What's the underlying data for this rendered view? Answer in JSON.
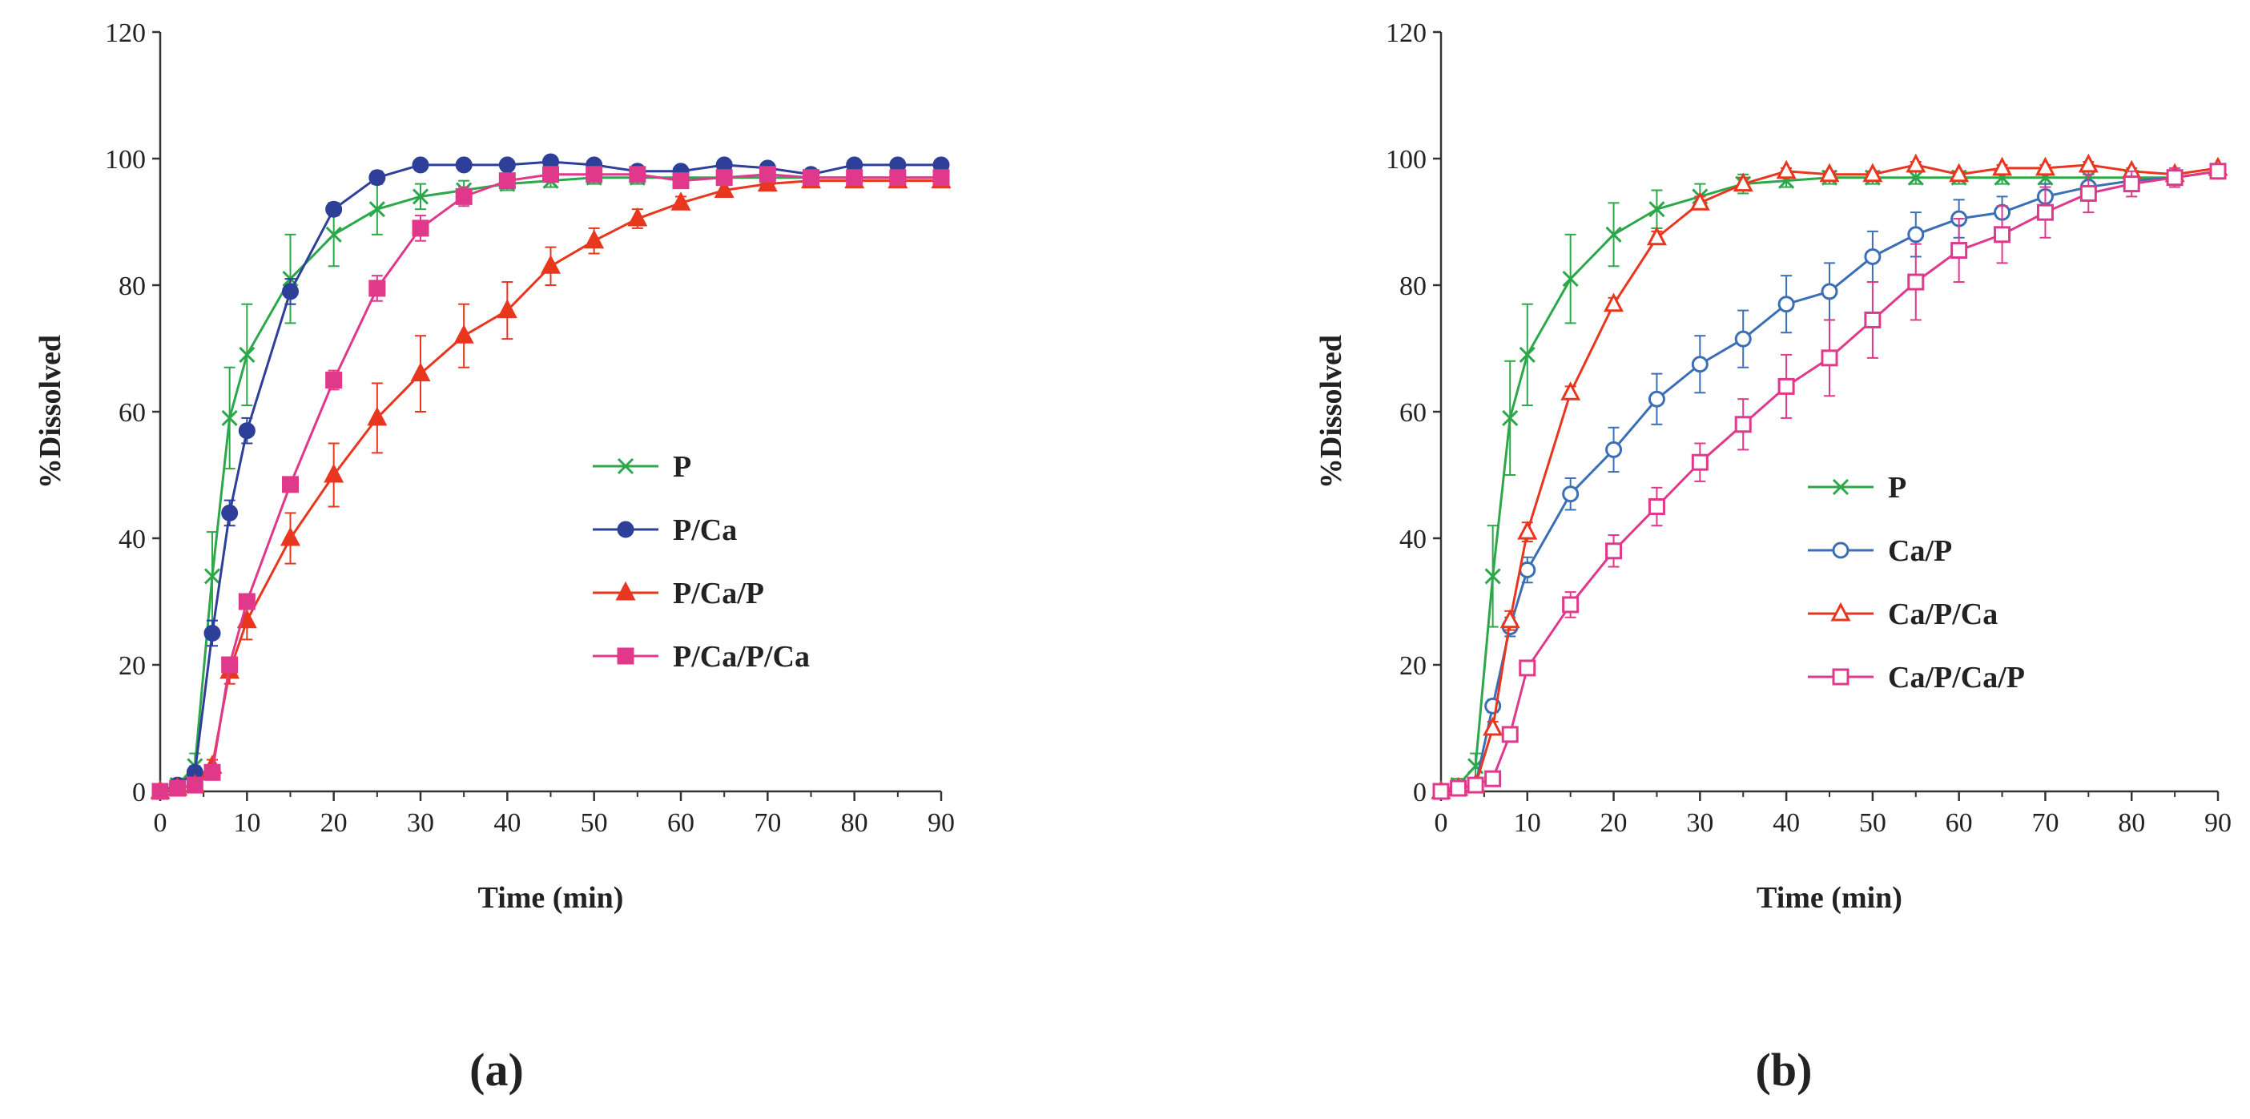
{
  "chart_data": [
    {
      "type": "line",
      "panel_label": "(a)",
      "xlabel": "Time (min)",
      "ylabel": "%Dissolved",
      "xlim": [
        0,
        90
      ],
      "ylim": [
        0,
        120
      ],
      "xticks": [
        0,
        10,
        20,
        30,
        40,
        50,
        60,
        70,
        80,
        90
      ],
      "yticks": [
        0,
        20,
        40,
        60,
        80,
        100,
        120
      ],
      "grid": false,
      "legend_position": "center-right",
      "series": [
        {
          "name": "P",
          "color": "#2ca84a",
          "marker": "x",
          "filled": true,
          "x": [
            0,
            2,
            4,
            6,
            8,
            10,
            15,
            20,
            25,
            30,
            35,
            40,
            45,
            50,
            55,
            60,
            65,
            70,
            75,
            80,
            85,
            90
          ],
          "y": [
            0,
            1,
            4,
            34,
            59,
            69,
            81,
            88,
            92,
            94,
            95,
            96,
            96.5,
            97,
            97,
            97,
            97,
            97,
            97,
            97,
            97,
            97
          ],
          "err": [
            0,
            1,
            2,
            7,
            8,
            8,
            7,
            5,
            4,
            2,
            1.5,
            1,
            1,
            1,
            1,
            1,
            1,
            1,
            1,
            1,
            1,
            1
          ]
        },
        {
          "name": "P/Ca",
          "color": "#2e3f99",
          "marker": "circle",
          "filled": true,
          "x": [
            0,
            2,
            4,
            6,
            8,
            10,
            15,
            20,
            25,
            30,
            35,
            40,
            45,
            50,
            55,
            60,
            65,
            70,
            75,
            80,
            85,
            90
          ],
          "y": [
            0,
            1,
            3,
            25,
            44,
            57,
            79,
            92,
            97,
            99,
            99,
            99,
            99.5,
            99,
            98,
            98,
            99,
            98.5,
            97.5,
            99,
            99,
            99
          ],
          "err": [
            0,
            0.5,
            1,
            2,
            2,
            2,
            2,
            1,
            1,
            0.5,
            0.5,
            0.5,
            0.5,
            0.5,
            0.5,
            0.5,
            0.5,
            0.5,
            0.5,
            0.5,
            0.5,
            0.5
          ]
        },
        {
          "name": "P/Ca/P",
          "color": "#e8361f",
          "marker": "triangle",
          "filled": true,
          "x": [
            0,
            2,
            4,
            6,
            8,
            10,
            15,
            20,
            25,
            30,
            35,
            40,
            45,
            50,
            55,
            60,
            65,
            70,
            75,
            80,
            85,
            90
          ],
          "y": [
            0,
            0.5,
            1,
            4,
            19,
            27,
            40,
            50,
            59,
            66,
            72,
            76,
            83,
            87,
            90.5,
            93,
            95,
            96,
            96.5,
            96.5,
            96.5,
            96.5
          ],
          "err": [
            0,
            0.5,
            0.5,
            1,
            2,
            3,
            4,
            5,
            5.5,
            6,
            5,
            4.5,
            3,
            2,
            1.5,
            1,
            1,
            1,
            1,
            1,
            1,
            1
          ]
        },
        {
          "name": "P/Ca/P/Ca",
          "color": "#e0388a",
          "marker": "square",
          "filled": true,
          "x": [
            0,
            2,
            4,
            6,
            8,
            10,
            15,
            20,
            25,
            30,
            35,
            40,
            45,
            50,
            55,
            60,
            65,
            70,
            75,
            80,
            85,
            90
          ],
          "y": [
            0,
            0.5,
            1,
            3,
            20,
            30,
            48.5,
            65,
            79.5,
            89,
            94,
            96.5,
            97.5,
            97.5,
            97.5,
            96.5,
            97,
            97.5,
            97,
            97,
            97,
            97
          ],
          "err": [
            0,
            0.5,
            0.5,
            1,
            1,
            1,
            1,
            1.5,
            2,
            2,
            1.5,
            1,
            1,
            1,
            1,
            1,
            1,
            1,
            1,
            1,
            1,
            1
          ]
        }
      ]
    },
    {
      "type": "line",
      "panel_label": "(b)",
      "xlabel": "Time (min)",
      "ylabel": "%Dissolved",
      "xlim": [
        0,
        90
      ],
      "ylim": [
        0,
        120
      ],
      "xticks": [
        0,
        10,
        20,
        30,
        40,
        50,
        60,
        70,
        80,
        90
      ],
      "yticks": [
        0,
        20,
        40,
        60,
        80,
        100,
        120
      ],
      "grid": false,
      "legend_position": "center-right",
      "series": [
        {
          "name": "P",
          "color": "#2ca84a",
          "marker": "x",
          "filled": true,
          "x": [
            0,
            2,
            4,
            6,
            8,
            10,
            15,
            20,
            25,
            30,
            35,
            40,
            45,
            50,
            55,
            60,
            65,
            70,
            75,
            80,
            85,
            90
          ],
          "y": [
            0,
            1,
            4,
            34,
            59,
            69,
            81,
            88,
            92,
            94,
            96,
            96.5,
            97,
            97,
            97,
            97,
            97,
            97,
            97,
            97,
            97,
            98
          ],
          "err": [
            0,
            1,
            2,
            8,
            9,
            8,
            7,
            5,
            3,
            2,
            1.5,
            1,
            1,
            1,
            1,
            1,
            1,
            1,
            1,
            1,
            1,
            1
          ]
        },
        {
          "name": "Ca/P",
          "color": "#3a6fb5",
          "marker": "circle",
          "filled": false,
          "x": [
            0,
            2,
            4,
            6,
            8,
            10,
            15,
            20,
            25,
            30,
            35,
            40,
            45,
            50,
            55,
            60,
            65,
            70,
            75,
            80,
            85,
            90
          ],
          "y": [
            0,
            0.5,
            1,
            13.5,
            26,
            35,
            47,
            54,
            62,
            67.5,
            71.5,
            77,
            79,
            84.5,
            88,
            90.5,
            91.5,
            94,
            95.5,
            96.5,
            97,
            98
          ],
          "err": [
            0,
            0.5,
            0.5,
            1,
            1.5,
            2,
            2.5,
            3.5,
            4,
            4.5,
            4.5,
            4.5,
            4.5,
            4,
            3.5,
            3,
            2.5,
            2,
            2,
            1.5,
            1,
            1
          ]
        },
        {
          "name": "Ca/P/Ca",
          "color": "#e8361f",
          "marker": "triangle",
          "filled": false,
          "x": [
            0,
            2,
            4,
            6,
            8,
            10,
            15,
            20,
            25,
            30,
            35,
            40,
            45,
            50,
            55,
            60,
            65,
            70,
            75,
            80,
            85,
            90
          ],
          "y": [
            0,
            0.5,
            1,
            10,
            27,
            41,
            63,
            77,
            87.5,
            93,
            96,
            98,
            97.5,
            97.5,
            99,
            97.5,
            98.5,
            98.5,
            99,
            98,
            97.5,
            98.5
          ],
          "err": [
            0,
            0.5,
            0.5,
            1,
            1.5,
            1.5,
            1,
            1,
            1,
            1,
            1,
            0.5,
            0.5,
            0.5,
            0.5,
            0.5,
            0.5,
            0.5,
            0.5,
            0.5,
            0.5,
            0.5
          ]
        },
        {
          "name": "Ca/P/Ca/P",
          "color": "#e0388a",
          "marker": "square",
          "filled": false,
          "x": [
            0,
            2,
            4,
            6,
            8,
            10,
            15,
            20,
            25,
            30,
            35,
            40,
            45,
            50,
            55,
            60,
            65,
            70,
            75,
            80,
            85,
            90
          ],
          "y": [
            0,
            0.5,
            1,
            2,
            9,
            19.5,
            29.5,
            38,
            45,
            52,
            58,
            64,
            68.5,
            74.5,
            80.5,
            85.5,
            88,
            91.5,
            94.5,
            96,
            97,
            98
          ],
          "err": [
            0,
            0.5,
            0.5,
            0.5,
            1,
            1,
            2,
            2.5,
            3,
            3,
            4,
            5,
            6,
            6,
            6,
            5,
            4.5,
            4,
            3,
            2,
            1.5,
            1
          ]
        }
      ]
    }
  ]
}
